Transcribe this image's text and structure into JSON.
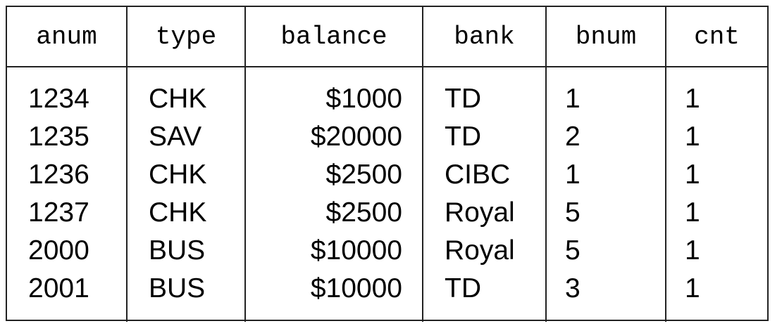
{
  "table": {
    "headers": [
      "anum",
      "type",
      "balance",
      "bank",
      "bnum",
      "cnt"
    ],
    "rows": [
      [
        "1234",
        "CHK",
        "$1000",
        "TD",
        "1",
        "1"
      ],
      [
        "1235",
        "SAV",
        "$20000",
        "TD",
        "2",
        "1"
      ],
      [
        "1236",
        "CHK",
        "$2500",
        "CIBC",
        "1",
        "1"
      ],
      [
        "1237",
        "CHK",
        "$2500",
        "Royal",
        "5",
        "1"
      ],
      [
        "2000",
        "BUS",
        "$10000",
        "Royal",
        "5",
        "1"
      ],
      [
        "2001",
        "BUS",
        "$10000",
        "TD",
        "3",
        "1"
      ]
    ]
  }
}
